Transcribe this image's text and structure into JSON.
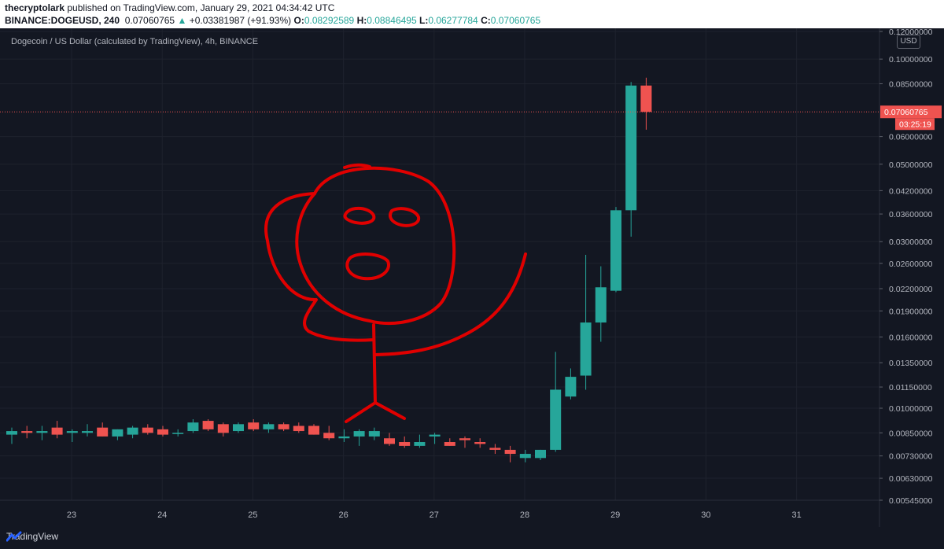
{
  "header": {
    "author": "thecryptolark",
    "published": "published on TradingView.com, January 29, 2021 04:34:42 UTC",
    "symbol": "BINANCE:DOGEUSD, 240",
    "last": "0.07060765",
    "change": "+0.03381987 (+91.93%)",
    "open_label": "O:",
    "open": "0.08292589",
    "high_label": "H:",
    "high": "0.08846495",
    "low_label": "L:",
    "low": "0.06277784",
    "close_label": "C:",
    "close": "0.07060765"
  },
  "chart_title": "Dogecoin / US Dollar (calculated by TradingView), 4h, BINANCE",
  "footer": {
    "brand": "TradingView"
  },
  "colors": {
    "up": "#26a69a",
    "down": "#ef5350",
    "background": "#131722",
    "drawing": "#e00000",
    "grid": "#1e222d"
  },
  "chart_data": {
    "type": "candlestick",
    "title": "Dogecoin / US Dollar (calculated by TradingView), 4h, BINANCE",
    "currency": "USD",
    "y_scale": "log",
    "ylim": [
      0.00545,
      0.12
    ],
    "y_ticks": [
      "0.12000000",
      "0.10000000",
      "0.08500000",
      "0.07060765",
      "0.06000000",
      "0.05000000",
      "0.04200000",
      "0.03600000",
      "0.03000000",
      "0.02600000",
      "0.02200000",
      "0.01900000",
      "0.01600000",
      "0.01350000",
      "0.01150000",
      "0.01000000",
      "0.00850000",
      "0.00730000",
      "0.00630000",
      "0.00545000"
    ],
    "x_ticks": [
      "23",
      "24",
      "25",
      "26",
      "27",
      "28",
      "29",
      "30",
      "31"
    ],
    "last_price_label": "0.07060765",
    "countdown_label": "03:25:19",
    "candles": [
      {
        "o": 0.0084,
        "h": 0.0088,
        "l": 0.0079,
        "c": 0.0086
      },
      {
        "o": 0.0086,
        "h": 0.0089,
        "l": 0.0082,
        "c": 0.0085
      },
      {
        "o": 0.0085,
        "h": 0.0089,
        "l": 0.0081,
        "c": 0.0086
      },
      {
        "o": 0.0088,
        "h": 0.0092,
        "l": 0.0082,
        "c": 0.0084
      },
      {
        "o": 0.0085,
        "h": 0.0087,
        "l": 0.008,
        "c": 0.0086
      },
      {
        "o": 0.0085,
        "h": 0.009,
        "l": 0.0083,
        "c": 0.0086
      },
      {
        "o": 0.0088,
        "h": 0.0091,
        "l": 0.0083,
        "c": 0.0083
      },
      {
        "o": 0.0083,
        "h": 0.0087,
        "l": 0.0081,
        "c": 0.0087
      },
      {
        "o": 0.0084,
        "h": 0.0089,
        "l": 0.0082,
        "c": 0.0088
      },
      {
        "o": 0.0088,
        "h": 0.009,
        "l": 0.0084,
        "c": 0.0085
      },
      {
        "o": 0.0087,
        "h": 0.0089,
        "l": 0.0083,
        "c": 0.0084
      },
      {
        "o": 0.0085,
        "h": 0.0087,
        "l": 0.0083,
        "c": 0.0085
      },
      {
        "o": 0.0086,
        "h": 0.0093,
        "l": 0.0085,
        "c": 0.0091
      },
      {
        "o": 0.0092,
        "h": 0.0093,
        "l": 0.0086,
        "c": 0.0087
      },
      {
        "o": 0.009,
        "h": 0.0091,
        "l": 0.0083,
        "c": 0.0085
      },
      {
        "o": 0.0086,
        "h": 0.0091,
        "l": 0.0085,
        "c": 0.009
      },
      {
        "o": 0.0091,
        "h": 0.0093,
        "l": 0.0086,
        "c": 0.0087
      },
      {
        "o": 0.0087,
        "h": 0.0091,
        "l": 0.0085,
        "c": 0.009
      },
      {
        "o": 0.009,
        "h": 0.0091,
        "l": 0.0086,
        "c": 0.0087
      },
      {
        "o": 0.0089,
        "h": 0.0091,
        "l": 0.0085,
        "c": 0.0086
      },
      {
        "o": 0.0089,
        "h": 0.009,
        "l": 0.0084,
        "c": 0.0084
      },
      {
        "o": 0.0085,
        "h": 0.0089,
        "l": 0.0081,
        "c": 0.0082
      },
      {
        "o": 0.0082,
        "h": 0.0087,
        "l": 0.008,
        "c": 0.0083
      },
      {
        "o": 0.0083,
        "h": 0.0087,
        "l": 0.0078,
        "c": 0.0086
      },
      {
        "o": 0.0083,
        "h": 0.0088,
        "l": 0.0081,
        "c": 0.0086
      },
      {
        "o": 0.0082,
        "h": 0.0085,
        "l": 0.0078,
        "c": 0.0079
      },
      {
        "o": 0.008,
        "h": 0.0083,
        "l": 0.0077,
        "c": 0.0078
      },
      {
        "o": 0.0078,
        "h": 0.0084,
        "l": 0.0077,
        "c": 0.008
      },
      {
        "o": 0.0083,
        "h": 0.0085,
        "l": 0.0079,
        "c": 0.0084
      },
      {
        "o": 0.008,
        "h": 0.0082,
        "l": 0.0078,
        "c": 0.0078
      },
      {
        "o": 0.0082,
        "h": 0.0083,
        "l": 0.0077,
        "c": 0.0081
      },
      {
        "o": 0.008,
        "h": 0.0082,
        "l": 0.0077,
        "c": 0.0079
      },
      {
        "o": 0.0077,
        "h": 0.0079,
        "l": 0.0074,
        "c": 0.0076
      },
      {
        "o": 0.0076,
        "h": 0.0078,
        "l": 0.007,
        "c": 0.0074
      },
      {
        "o": 0.0072,
        "h": 0.0076,
        "l": 0.007,
        "c": 0.0074
      },
      {
        "o": 0.0072,
        "h": 0.0076,
        "l": 0.0071,
        "c": 0.0076
      },
      {
        "o": 0.0076,
        "h": 0.0145,
        "l": 0.0075,
        "c": 0.0113
      },
      {
        "o": 0.0108,
        "h": 0.013,
        "l": 0.0106,
        "c": 0.0123
      },
      {
        "o": 0.0124,
        "h": 0.0275,
        "l": 0.0113,
        "c": 0.0176
      },
      {
        "o": 0.0176,
        "h": 0.0255,
        "l": 0.0155,
        "c": 0.0222
      },
      {
        "o": 0.0217,
        "h": 0.0377,
        "l": 0.0215,
        "c": 0.0369
      },
      {
        "o": 0.0369,
        "h": 0.086,
        "l": 0.031,
        "c": 0.084
      },
      {
        "o": 0.084,
        "h": 0.08846495,
        "l": 0.06277784,
        "c": 0.07060765
      }
    ]
  }
}
